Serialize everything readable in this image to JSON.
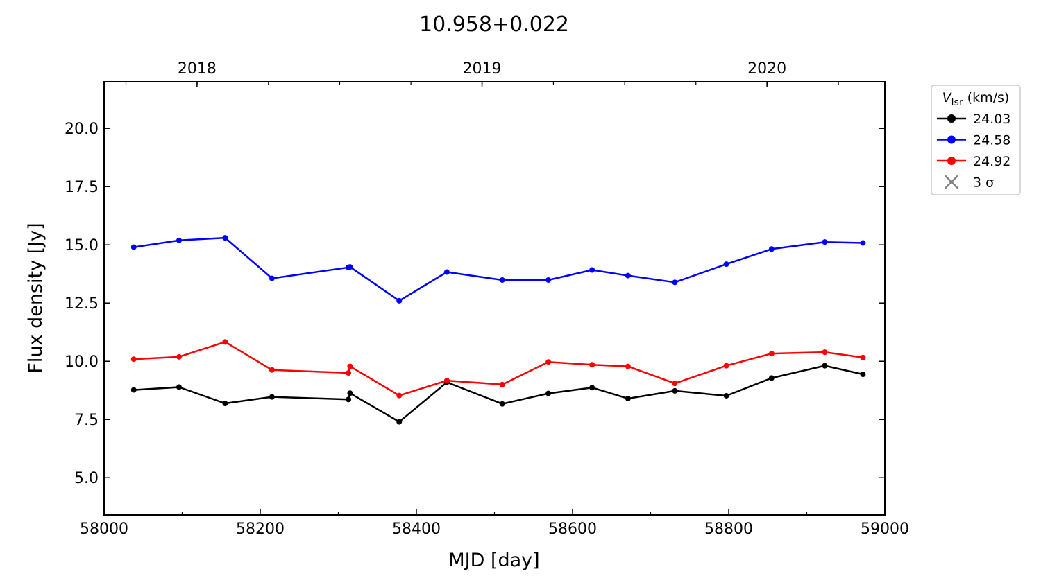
{
  "chart_data": {
    "type": "line",
    "title": "10.958+0.022",
    "xlabel": "MJD [day]",
    "ylabel": "Flux density [Jy]",
    "xlim": [
      58000,
      59000
    ],
    "ylim": [
      3.4,
      22.0
    ],
    "xticks": [
      58000,
      58200,
      58400,
      58600,
      58800,
      59000
    ],
    "yticks": [
      5.0,
      7.5,
      10.0,
      12.5,
      15.0,
      17.5,
      20.0
    ],
    "ytick_labels": [
      "5.0",
      "7.5",
      "10.0",
      "12.5",
      "15.0",
      "17.5",
      "20.0"
    ],
    "top_axis": {
      "labels": [
        "2018",
        "2019",
        "2020"
      ],
      "label_positions_mjd": [
        58119,
        58484,
        58849
      ]
    },
    "grid": false,
    "legend": {
      "placement": "outside-right-top",
      "title_main": "V",
      "title_sub": "lsr",
      "title_rest": " (km/s)",
      "sigma_label": "3 σ",
      "sigma_color": "#7f7f7f"
    },
    "series": [
      {
        "name": "24.03",
        "color": "#000000",
        "x": [
          58038,
          58096,
          58155,
          58215,
          58313,
          58315,
          58378,
          58439,
          58510,
          58569,
          58625,
          58671,
          58731,
          58797,
          58855,
          58923,
          58972
        ],
        "y": [
          8.77,
          8.89,
          8.19,
          8.47,
          8.36,
          8.63,
          7.4,
          9.1,
          8.17,
          8.62,
          8.87,
          8.4,
          8.73,
          8.52,
          9.28,
          9.81,
          9.44
        ]
      },
      {
        "name": "24.58",
        "color": "#0000ff",
        "x": [
          58038,
          58096,
          58155,
          58215,
          58313,
          58315,
          58378,
          58439,
          58510,
          58569,
          58625,
          58671,
          58731,
          58797,
          58855,
          58923,
          58972
        ],
        "y": [
          14.9,
          15.19,
          15.3,
          13.56,
          14.03,
          14.05,
          12.6,
          13.83,
          13.49,
          13.49,
          13.92,
          13.68,
          13.39,
          14.17,
          14.82,
          15.12,
          15.08
        ]
      },
      {
        "name": "24.92",
        "color": "#ff0000",
        "x": [
          58038,
          58096,
          58155,
          58215,
          58313,
          58315,
          58378,
          58439,
          58510,
          58569,
          58625,
          58671,
          58731,
          58797,
          58855,
          58923,
          58972
        ],
        "y": [
          10.09,
          10.19,
          10.83,
          9.63,
          9.5,
          9.78,
          8.53,
          9.17,
          9.0,
          9.97,
          9.85,
          9.78,
          9.05,
          9.81,
          10.33,
          10.39,
          10.16
        ]
      }
    ]
  }
}
